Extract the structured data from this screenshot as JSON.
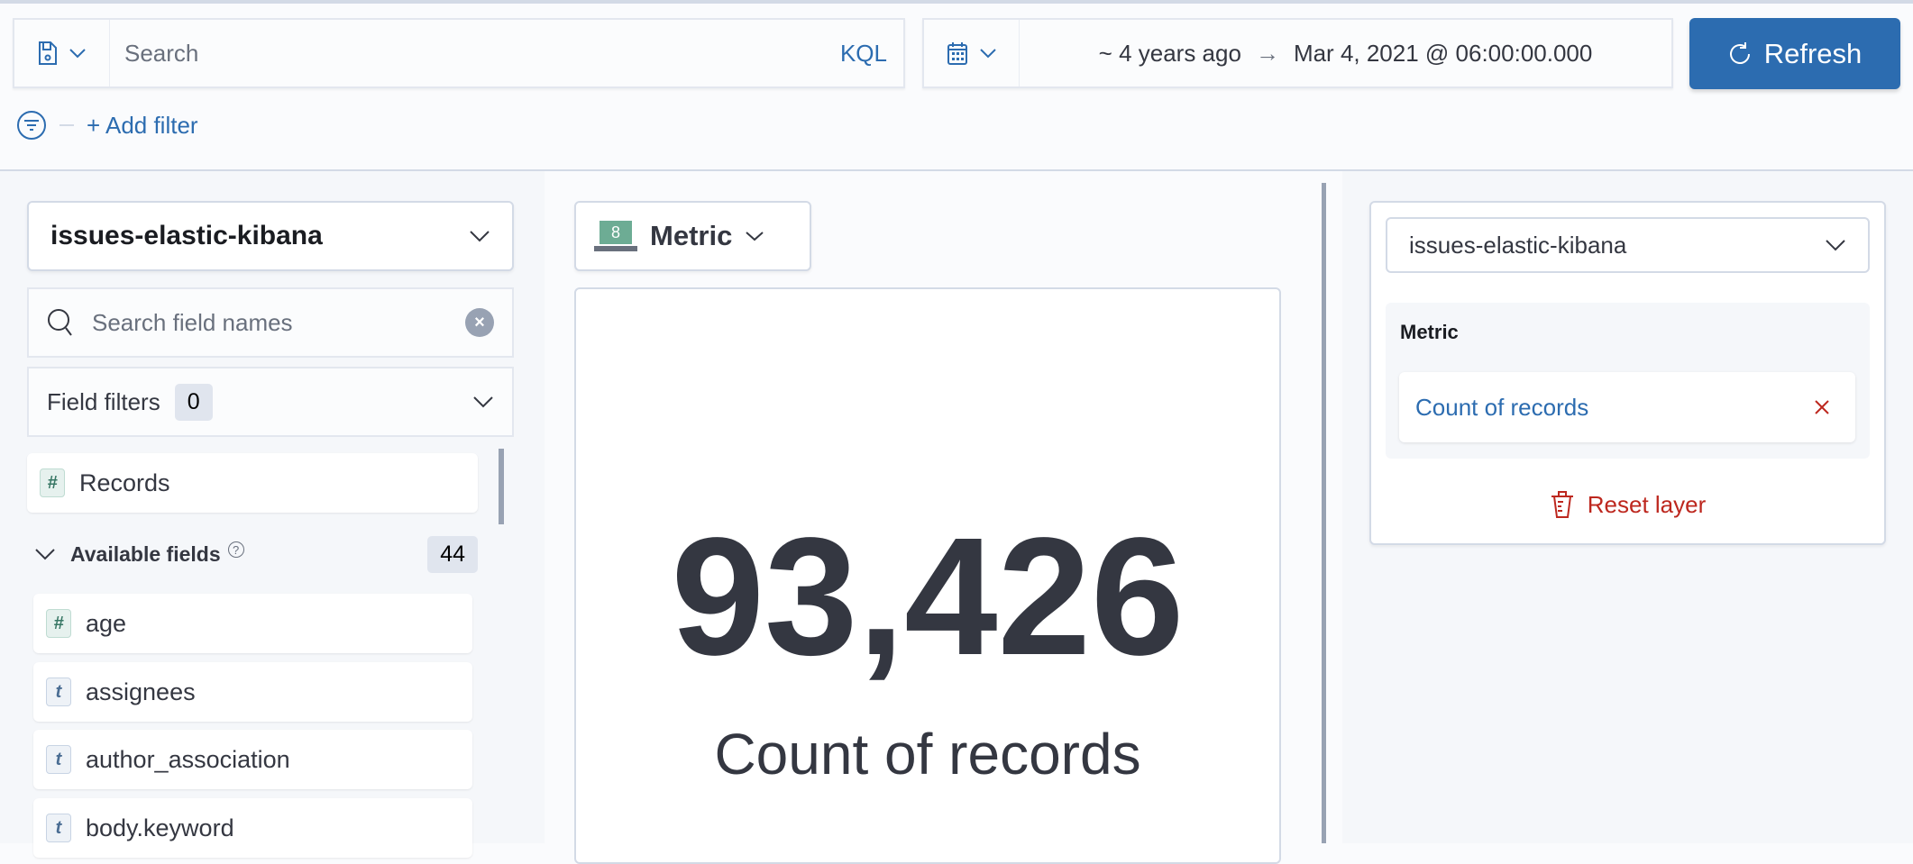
{
  "query_bar": {
    "placeholder": "Search",
    "language": "KQL",
    "icons": {
      "save": "save-icon",
      "chevron": "chevron-down-icon"
    }
  },
  "date_picker": {
    "start": "~ 4 years ago",
    "end": "Mar 4, 2021 @ 06:00:00.000",
    "icon": "calendar-icon"
  },
  "refresh": {
    "label": "Refresh",
    "icon": "refresh-icon"
  },
  "filters": {
    "add_label": "+ Add filter"
  },
  "left_panel": {
    "index_pattern": "issues-elastic-kibana",
    "search_placeholder": "Search field names",
    "field_filters": {
      "label": "Field filters",
      "count": "0"
    },
    "records": {
      "type": "#",
      "label": "Records"
    },
    "available": {
      "label": "Available fields",
      "count": "44"
    },
    "fields": [
      {
        "type": "#",
        "name": "age"
      },
      {
        "type": "t",
        "name": "assignees"
      },
      {
        "type": "t",
        "name": "author_association"
      },
      {
        "type": "t",
        "name": "body.keyword"
      }
    ]
  },
  "workspace": {
    "chart_type": "Metric",
    "chart_icon_value": "8",
    "metric_value": "93,426",
    "metric_label": "Count of records"
  },
  "config_panel": {
    "index_pattern": "issues-elastic-kibana",
    "group_label": "Metric",
    "dimension": "Count of records",
    "reset_label": "Reset layer"
  },
  "colors": {
    "primary": "#2c6cb0",
    "danger": "#bd271e",
    "text": "#343741",
    "number_token": "#387765",
    "string_token": "#4a6d93"
  }
}
